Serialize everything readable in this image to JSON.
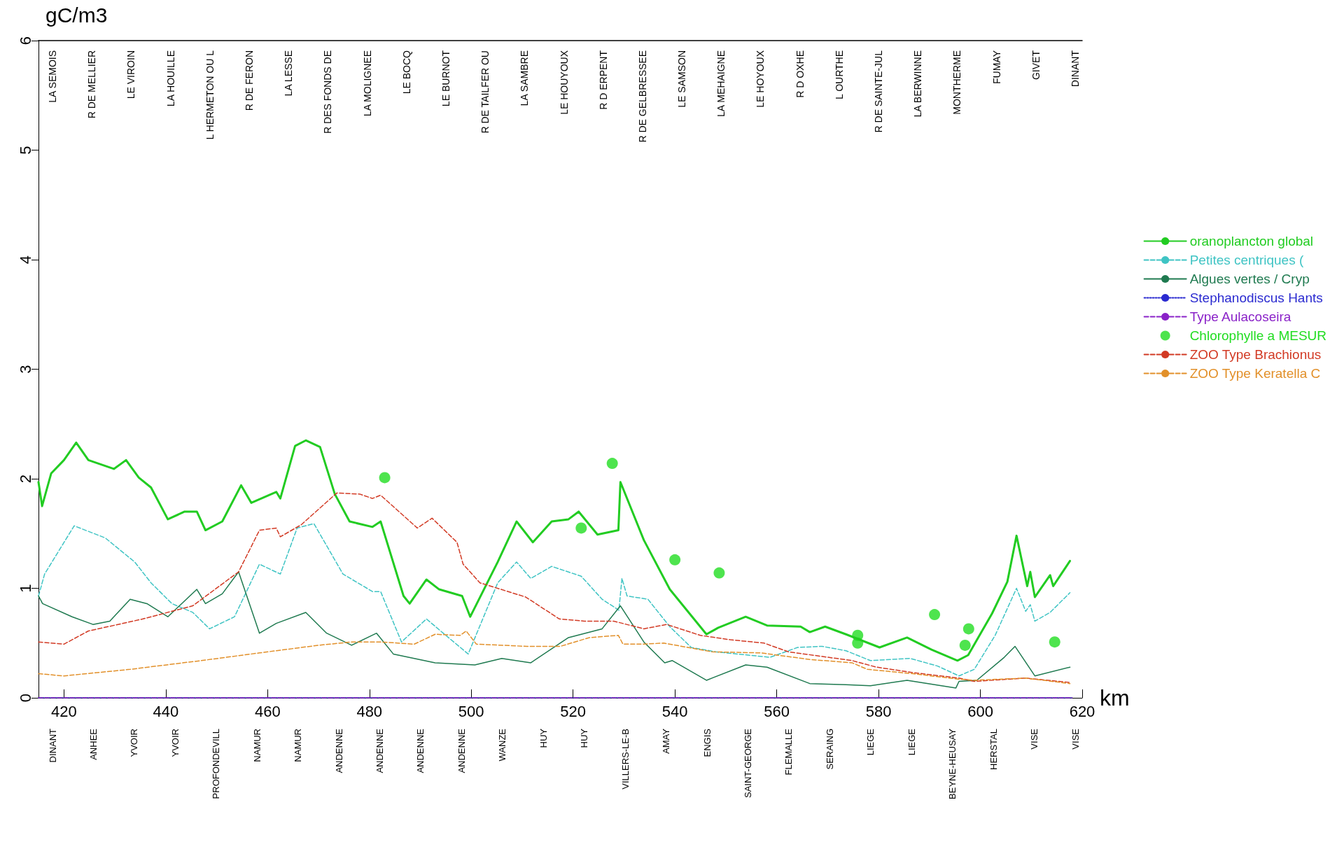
{
  "chart_data": {
    "type": "line",
    "ylabel": "gC/m3",
    "xlabel": "km",
    "xlim": [
      415,
      620
    ],
    "xticks": [
      420,
      440,
      460,
      480,
      500,
      520,
      540,
      560,
      580,
      600,
      620
    ],
    "ylim": [
      0,
      6
    ],
    "yticks": [
      0,
      1,
      2,
      3,
      4,
      5,
      6
    ],
    "grid": false,
    "legend": "right",
    "marker": "none",
    "annotations": [
      "LA SEMOIS",
      "R DE MELLIER",
      "LE VIROIN",
      "LA HOUILLE",
      "L HERMETON OU L",
      "R DE FERON",
      "LA LESSE",
      "R DES FONDS DE",
      "LA MOLIGNEE",
      "LE BOCQ",
      "LE BURNOT",
      "R DE TAILFER OU",
      "LA SAMBRE",
      "LE HOUYOUX",
      "R D ERPENT",
      "R DE GELBRESSEE",
      "LE SAMSON",
      "LA MEHAIGNE",
      "LE HOYOUX",
      "R D OXHE",
      "L OURTHE",
      "R DE SAINTE-JUL",
      "LA BERWINNE",
      "MONTHERME",
      "FUMAY",
      "GIVET",
      "DINANT",
      "DINANT",
      "ANHEE",
      "YVOIR",
      "YVOIR",
      "PROFONDEVILL",
      "NAMUR",
      "NAMUR",
      "ANDENNE",
      "ANDENNE",
      "ANDENNE",
      "ANDENNE",
      "WANZE",
      "HUY",
      "HUY",
      "VILLERS-LE-B",
      "AMAY",
      "ENGIS",
      "SAINT-GEORGE",
      "FLEMALLE",
      "SERAING",
      "LIEGE",
      "LIEGE",
      "BEYNE-HEUSAY",
      "HERSTAL",
      "VISE",
      "VISE"
    ],
    "series": [
      {
        "name": "oranoplancton global",
        "color": "#22cc22",
        "line_style": "solid",
        "x": [
          415.0,
          415.7,
          417.5,
          420,
          422.4,
          424.8,
          429.8,
          432.2,
          434.7,
          437.1,
          440.4,
          443.7,
          446.1,
          447.8,
          451.1,
          454.8,
          456.8,
          461.7,
          462.5,
          465.4,
          467.5,
          470.3,
          473.2,
          476.1,
          480.6,
          482.2,
          486.7,
          487.9,
          491.2,
          493.7,
          498.2,
          499.8,
          505.2,
          508.9,
          512.1,
          515.8,
          519.1,
          521.1,
          524.8,
          528.9,
          529.3,
          533.9,
          539.0,
          546.2,
          548.5,
          553.9,
          558.1,
          564.7,
          566.5,
          569.5,
          573.6,
          580.2,
          585.6,
          590.4,
          595.5,
          597.6,
          602.3,
          605.3,
          607.1,
          609.2,
          609.8,
          610.7,
          613.7,
          614.3,
          617.6
        ],
        "values": [
          1.97,
          1.75,
          2.05,
          2.17,
          2.33,
          2.17,
          2.09,
          2.17,
          2.01,
          1.92,
          1.63,
          1.7,
          1.7,
          1.53,
          1.61,
          1.94,
          1.78,
          1.88,
          1.82,
          2.3,
          2.35,
          2.29,
          1.86,
          1.61,
          1.56,
          1.61,
          0.93,
          0.86,
          1.08,
          0.99,
          0.93,
          0.74,
          1.24,
          1.61,
          1.42,
          1.61,
          1.63,
          1.7,
          1.49,
          1.53,
          1.97,
          1.44,
          0.99,
          0.58,
          0.64,
          0.74,
          0.66,
          0.65,
          0.6,
          0.65,
          0.58,
          0.46,
          0.55,
          0.44,
          0.34,
          0.39,
          0.77,
          1.06,
          1.48,
          1.02,
          1.15,
          0.92,
          1.12,
          1.02,
          1.25
        ]
      },
      {
        "name": "Petites centriques (",
        "color": "#3fc4c4",
        "line_style": "dashed",
        "x": [
          415,
          416.2,
          422,
          428.1,
          433.9,
          437.1,
          441.2,
          445.3,
          448.6,
          453.5,
          458.4,
          462.5,
          465.8,
          469.1,
          474.8,
          480.6,
          482.2,
          486.3,
          491.2,
          494.5,
          499.4,
          505.2,
          508.9,
          511.7,
          515.8,
          521.6,
          525.7,
          529.0,
          529.6,
          530.6,
          534.7,
          539,
          543.2,
          548,
          558.7,
          564.1,
          568.9,
          573.6,
          578.4,
          586.2,
          591.6,
          595.8,
          598.8,
          602.9,
          607.1,
          608.9,
          609.8,
          610.7,
          613.7,
          617.6
        ],
        "values": [
          0.93,
          1.13,
          1.57,
          1.46,
          1.24,
          1.05,
          0.86,
          0.78,
          0.63,
          0.74,
          1.22,
          1.13,
          1.55,
          1.59,
          1.13,
          0.97,
          0.97,
          0.51,
          0.72,
          0.59,
          0.4,
          1.05,
          1.24,
          1.09,
          1.2,
          1.11,
          0.9,
          0.8,
          1.09,
          0.93,
          0.9,
          0.65,
          0.46,
          0.42,
          0.37,
          0.46,
          0.47,
          0.43,
          0.34,
          0.36,
          0.29,
          0.2,
          0.26,
          0.57,
          1.0,
          0.79,
          0.85,
          0.7,
          0.78,
          0.96
        ]
      },
      {
        "name": "Algues vertes / Cryp",
        "color": "#1f7a50",
        "line_style": "solid",
        "x": [
          415,
          415.8,
          421.6,
          425.7,
          429,
          433,
          436.3,
          440.4,
          446.1,
          447.8,
          451.1,
          454.3,
          458.4,
          461.7,
          467.5,
          471.6,
          476.5,
          481.4,
          484.7,
          492.9,
          500.7,
          506,
          511.7,
          519.1,
          525.7,
          529.3,
          533.9,
          538,
          539.5,
          546.2,
          553.9,
          558.1,
          566.5,
          573.6,
          578.4,
          585.6,
          595.2,
          595.8,
          599.3,
          604.7,
          606.8,
          610.7,
          617.6
        ],
        "values": [
          0.93,
          0.86,
          0.74,
          0.67,
          0.7,
          0.9,
          0.86,
          0.74,
          0.99,
          0.86,
          0.95,
          1.15,
          0.59,
          0.68,
          0.78,
          0.59,
          0.48,
          0.59,
          0.4,
          0.32,
          0.3,
          0.36,
          0.32,
          0.55,
          0.63,
          0.84,
          0.51,
          0.32,
          0.34,
          0.16,
          0.3,
          0.28,
          0.13,
          0.12,
          0.11,
          0.16,
          0.09,
          0.15,
          0.16,
          0.37,
          0.47,
          0.2,
          0.28
        ]
      },
      {
        "name": "Stephanodiscus Hants",
        "color": "#2a2ad0",
        "line_style": "dotted",
        "x": [
          415,
          618
        ],
        "values": [
          0,
          0
        ]
      },
      {
        "name": "Type Aulacoseira",
        "color": "#8a22c8",
        "line_style": "dashed",
        "x": [
          415,
          618
        ],
        "values": [
          0,
          0
        ]
      },
      {
        "name": "Chlorophylle a MESUR",
        "color": "#22dd22",
        "type": "scatter",
        "marker": "circle",
        "x": [
          483.0,
          521.6,
          527.7,
          540.0,
          548.7,
          575.9,
          575.9,
          591.0,
          597.0,
          597.7,
          614.6
        ],
        "values": [
          2.01,
          1.55,
          2.14,
          1.26,
          1.14,
          0.57,
          0.5,
          0.76,
          0.48,
          0.63,
          0.51
        ]
      },
      {
        "name": "ZOO Type Brachionus",
        "color": "#d23a24",
        "line_style": "dashed",
        "x": [
          415,
          420,
          424.8,
          435.5,
          445.3,
          454.3,
          458.4,
          461.7,
          462.5,
          466.6,
          473.6,
          478.1,
          480.6,
          482.2,
          489.4,
          492.3,
          497.2,
          498.4,
          501.7,
          510.7,
          517.3,
          522.2,
          528.0,
          533.9,
          538.4,
          545,
          550.9,
          557.5,
          562.3,
          570.1,
          574.8,
          579.6,
          586.8,
          595.8,
          598.8,
          608.9,
          617.6
        ],
        "values": [
          0.51,
          0.49,
          0.61,
          0.72,
          0.84,
          1.15,
          1.53,
          1.55,
          1.47,
          1.58,
          1.87,
          1.86,
          1.82,
          1.85,
          1.55,
          1.64,
          1.42,
          1.22,
          1.05,
          0.92,
          0.72,
          0.7,
          0.7,
          0.63,
          0.67,
          0.57,
          0.53,
          0.5,
          0.42,
          0.37,
          0.34,
          0.28,
          0.23,
          0.18,
          0.15,
          0.18,
          0.14
        ]
      },
      {
        "name": "ZOO Type Keratella C",
        "color": "#e2902a",
        "line_style": "dashed",
        "x": [
          415,
          420,
          433,
          447,
          458.4,
          470,
          476.5,
          482.2,
          488.8,
          492.9,
          497.8,
          499,
          501,
          510.9,
          517.5,
          523.2,
          528.9,
          529.8,
          533.9,
          537.8,
          547.3,
          556.9,
          566.5,
          574.8,
          577.8,
          586.8,
          595.8,
          598.8,
          608.9,
          617.6
        ],
        "values": [
          0.22,
          0.2,
          0.26,
          0.34,
          0.41,
          0.48,
          0.51,
          0.51,
          0.49,
          0.58,
          0.57,
          0.61,
          0.49,
          0.47,
          0.47,
          0.55,
          0.57,
          0.49,
          0.49,
          0.5,
          0.42,
          0.41,
          0.35,
          0.32,
          0.26,
          0.22,
          0.17,
          0.16,
          0.18,
          0.13
        ]
      }
    ]
  }
}
